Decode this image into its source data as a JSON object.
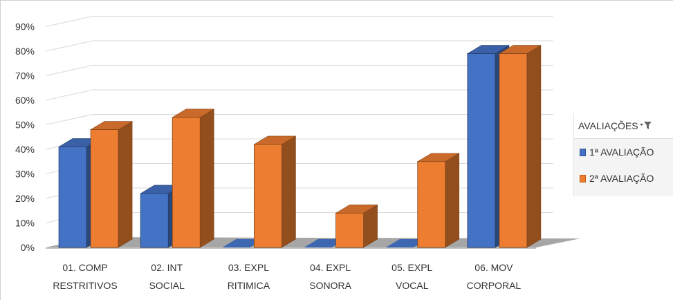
{
  "chart_data": {
    "type": "bar",
    "categories": [
      [
        "01. COMP",
        "RESTRITIVOS"
      ],
      [
        "02. INT",
        "SOCIAL"
      ],
      [
        "03. EXPL",
        "RITIMICA"
      ],
      [
        "04. EXPL",
        "SONORA"
      ],
      [
        "05. EXPL",
        "VOCAL"
      ],
      [
        "06. MOV",
        "CORPORAL"
      ]
    ],
    "series": [
      {
        "name": "1ª AVALIAÇÃO",
        "values": [
          0.41,
          0.22,
          0,
          0,
          0,
          0.79
        ],
        "color": "#4472C4"
      },
      {
        "name": "2ª AVALIAÇÃO",
        "values": [
          0.48,
          0.53,
          0.42,
          0.14,
          0.35,
          0.79
        ],
        "color": "#ED7D31"
      }
    ],
    "y_ticks": [
      "0%",
      "10%",
      "20%",
      "30%",
      "40%",
      "50%",
      "60%",
      "70%",
      "80%",
      "90%"
    ],
    "ylim": [
      0,
      0.9
    ],
    "title": "",
    "xlabel": "",
    "ylabel": "",
    "grid": true,
    "legend_position": "right",
    "legend_title": "AVALIAÇÕES",
    "legend_filter_icon": "filter-dropdown-icon",
    "floor_color": "#a6a6a6",
    "gridline_color": "#d9d9d9"
  }
}
